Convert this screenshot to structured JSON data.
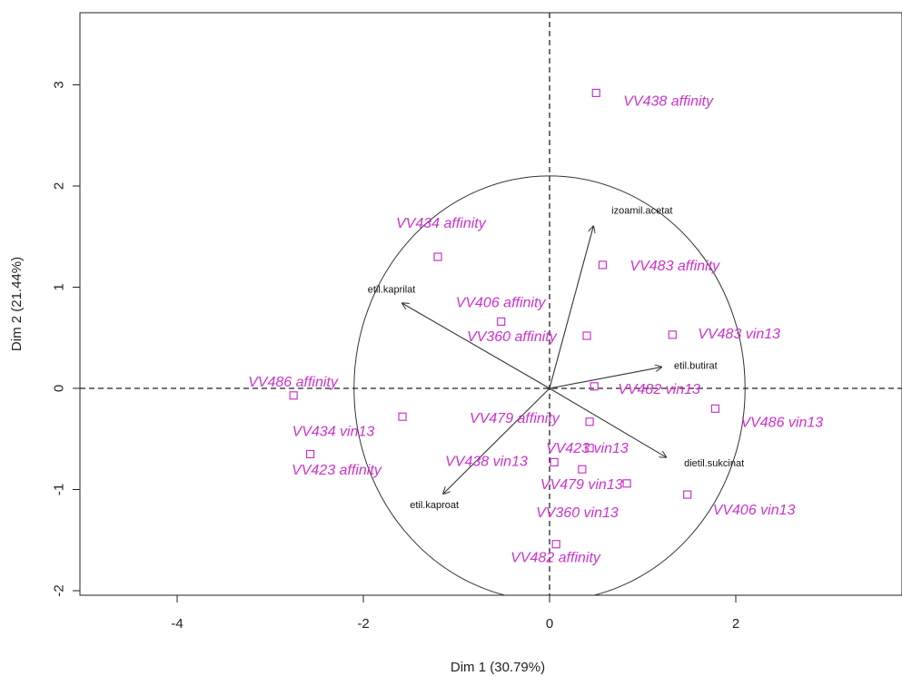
{
  "chart_data": {
    "type": "scatter",
    "xlabel": "Dim 1 (30.79%)",
    "ylabel": "Dim 2 (21.44%)",
    "xlim": [
      -5.0,
      3.7
    ],
    "ylim": [
      -2.05,
      3.7
    ],
    "xticks": [
      "-4",
      "-2",
      "0",
      "2"
    ],
    "yticks": [
      "-2",
      "-1",
      "0",
      "1",
      "2",
      "3"
    ],
    "grid": false,
    "reference_lines": "dashed lines at x=0 and y=0",
    "circle_radius": 2.1,
    "point_color": "#cc33cc",
    "vector_color": "#333333",
    "points": [
      {
        "label": "VV438 affinity",
        "x": 0.5,
        "y": 2.92
      },
      {
        "label": "VV434 affinity",
        "x": -1.2,
        "y": 1.3
      },
      {
        "label": "VV483 affinity",
        "x": 0.57,
        "y": 1.22
      },
      {
        "label": "VV406 affinity",
        "x": -0.52,
        "y": 0.66
      },
      {
        "label": "VV360 affinity",
        "x": 0.4,
        "y": 0.52
      },
      {
        "label": "VV483 vin13",
        "x": 1.32,
        "y": 0.53
      },
      {
        "label": "VV486 affinity",
        "x": -2.75,
        "y": -0.07
      },
      {
        "label": "VV482 vin13",
        "x": 0.48,
        "y": 0.02
      },
      {
        "label": "VV486 vin13",
        "x": 1.78,
        "y": -0.2
      },
      {
        "label": "VV479 affinity",
        "x": -1.58,
        "y": -0.28
      },
      {
        "label": "VV423 vin13",
        "x": 0.43,
        "y": -0.33
      },
      {
        "label": "VV434 vin13",
        "x": -2.57,
        "y": -0.65
      },
      {
        "label": "VV423 affinity",
        "x": 0.43,
        "y": -0.59
      },
      {
        "label": "VV438 vin13",
        "x": 0.05,
        "y": -0.73
      },
      {
        "label": "VV479 vin13",
        "x": 0.35,
        "y": -0.8
      },
      {
        "label": "VV360 vin13",
        "x": 0.83,
        "y": -0.94
      },
      {
        "label": "VV406 vin13",
        "x": 1.48,
        "y": -1.05
      },
      {
        "label": "VV482 affinity",
        "x": 0.07,
        "y": -1.54
      }
    ],
    "variables": [
      {
        "label": "izoamil.acetat",
        "x": 0.47,
        "y": 1.6
      },
      {
        "label": "etil.kaprilat",
        "x": -1.58,
        "y": 0.84
      },
      {
        "label": "etil.butirat",
        "x": 1.2,
        "y": 0.21
      },
      {
        "label": "dietil.sukcinat",
        "x": 1.25,
        "y": -0.68
      },
      {
        "label": "etil.kaproat",
        "x": -1.14,
        "y": -1.04
      }
    ]
  }
}
